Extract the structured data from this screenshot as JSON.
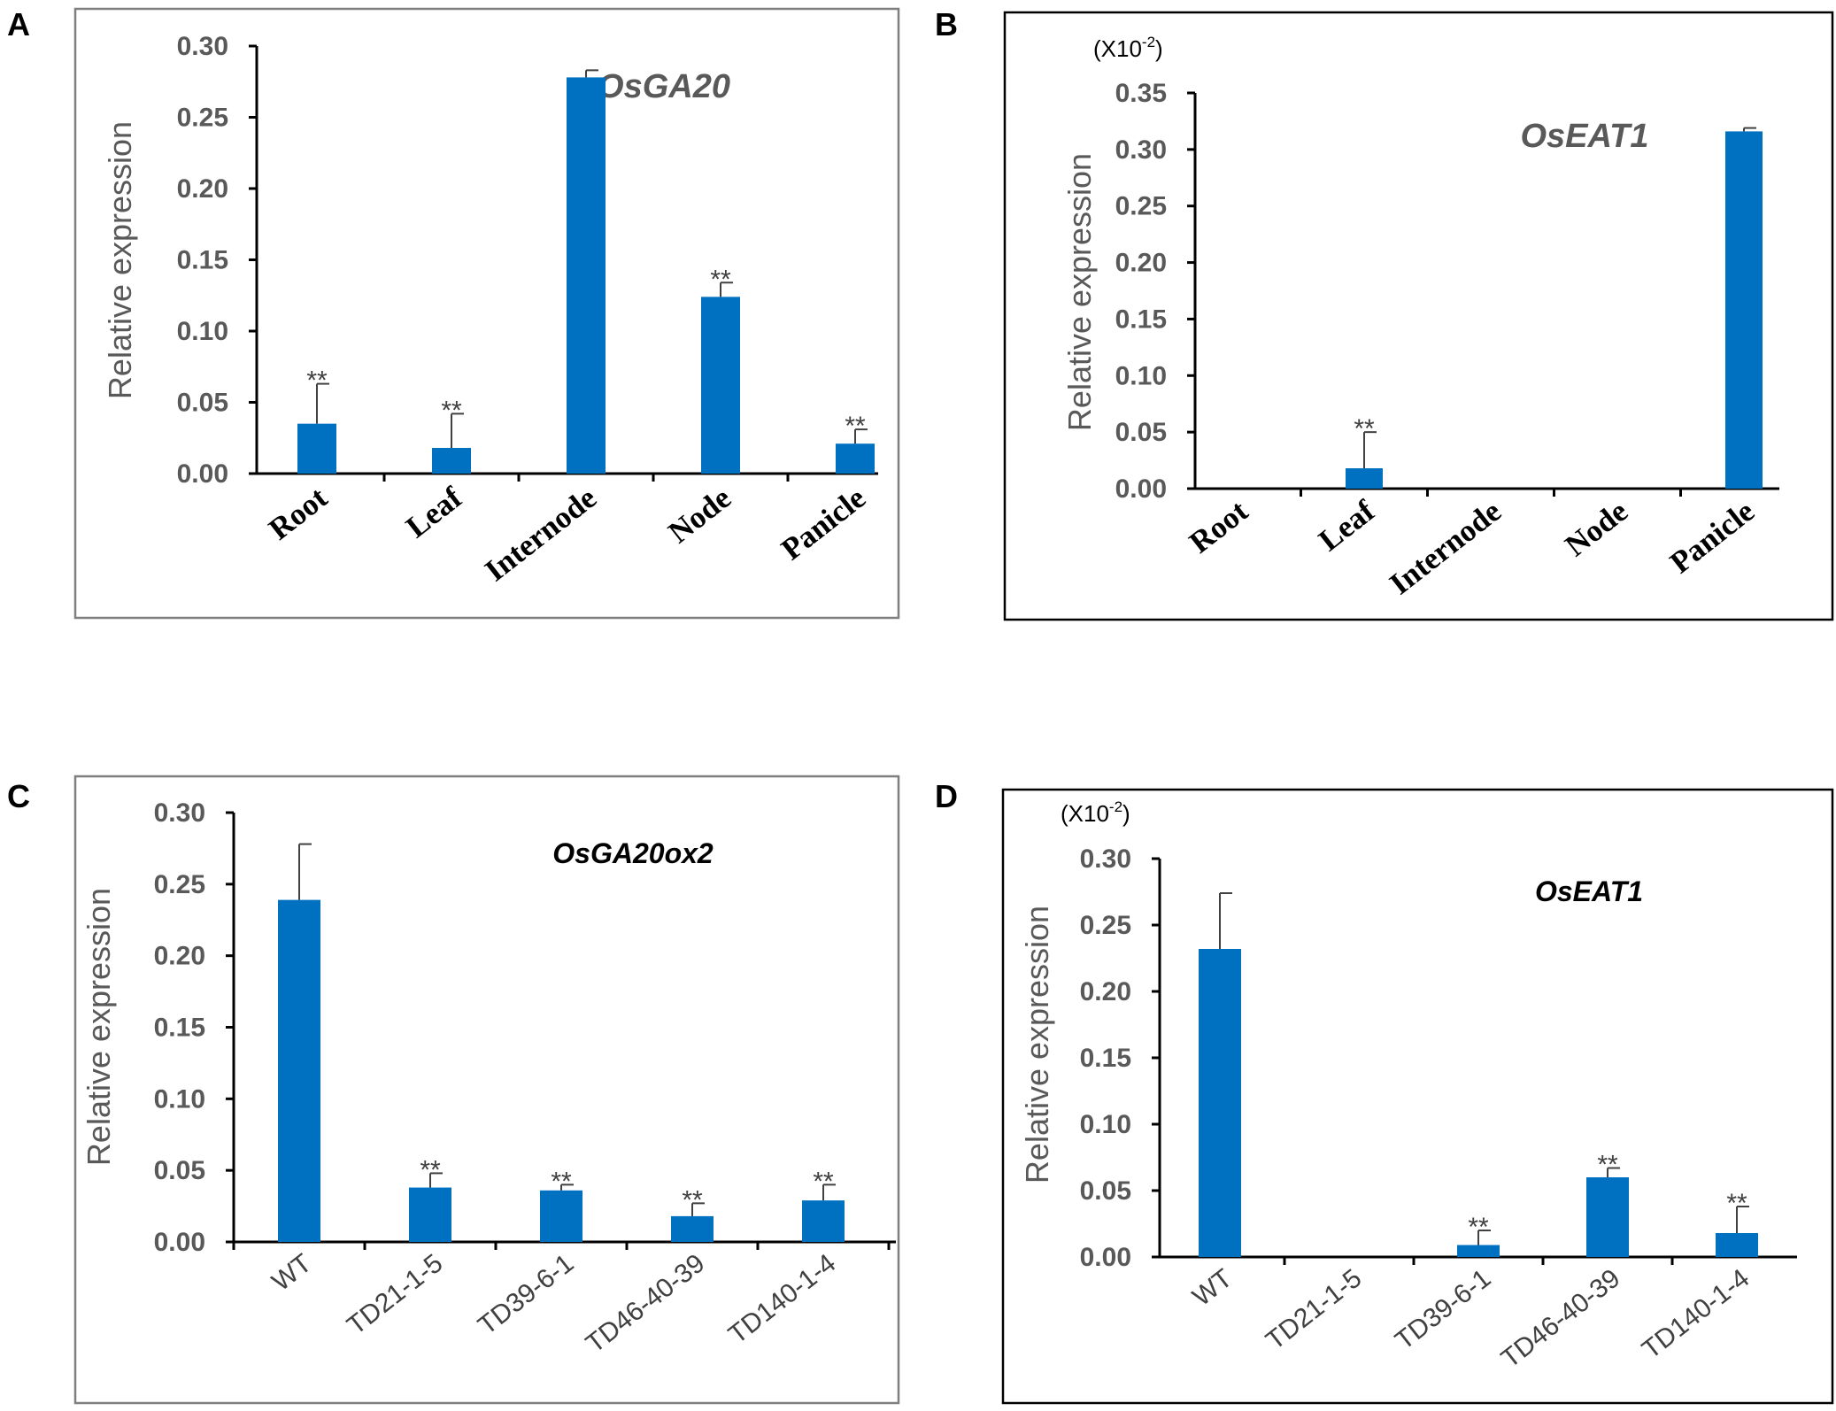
{
  "colors": {
    "bar": "#0070C0",
    "frame_gray": "#7f7f7f",
    "frame_black": "#000000"
  },
  "chart_data": [
    {
      "panel": "A",
      "type": "bar",
      "title": "OsGA20",
      "ylabel": "Relative expression",
      "ylim": [
        0,
        0.3
      ],
      "yticks": [
        "0.00",
        "0.05",
        "0.10",
        "0.15",
        "0.20",
        "0.25",
        "0.30"
      ],
      "categories": [
        "Root",
        "Leaf",
        "Internode",
        "Node",
        "Panicle"
      ],
      "values": [
        0.035,
        0.018,
        0.278,
        0.124,
        0.021
      ],
      "errors": [
        0.028,
        0.024,
        0.005,
        0.01,
        0.01
      ],
      "significance": [
        "**",
        "**",
        "",
        "**",
        "**"
      ]
    },
    {
      "panel": "B",
      "type": "bar",
      "title": "OsEAT1",
      "scale_note": "(X10",
      "scale_exp": "-2",
      "scale_close": ")",
      "ylabel": "Relative expression",
      "ylim": [
        0,
        0.35
      ],
      "yticks": [
        "0.00",
        "0.05",
        "0.10",
        "0.15",
        "0.20",
        "0.25",
        "0.30",
        "0.35"
      ],
      "categories": [
        "Root",
        "Leaf",
        "Internode",
        "Node",
        "Panicle"
      ],
      "values": [
        0,
        0.018,
        0,
        0,
        0.316
      ],
      "errors": [
        0,
        0.032,
        0,
        0,
        0.003
      ],
      "significance": [
        "",
        "**",
        "",
        "",
        ""
      ]
    },
    {
      "panel": "C",
      "type": "bar",
      "title": "OsGA20ox2",
      "ylabel": "Relative expression",
      "ylim": [
        0,
        0.3
      ],
      "yticks": [
        "0.00",
        "0.05",
        "0.10",
        "0.15",
        "0.20",
        "0.25",
        "0.30"
      ],
      "categories": [
        "WT",
        "TD21-1-5",
        "TD39-6-1",
        "TD46-40-39",
        "TD140-1-4"
      ],
      "values": [
        0.239,
        0.038,
        0.036,
        0.018,
        0.029
      ],
      "errors": [
        0.039,
        0.01,
        0.004,
        0.009,
        0.011
      ],
      "significance": [
        "",
        "**",
        "**",
        "**",
        "**"
      ]
    },
    {
      "panel": "D",
      "type": "bar",
      "title": "OsEAT1",
      "scale_note": "(X10",
      "scale_exp": "-2",
      "scale_close": ")",
      "ylabel": "Relative expression",
      "ylim": [
        0,
        0.3
      ],
      "yticks": [
        "0.00",
        "0.05",
        "0.10",
        "0.15",
        "0.20",
        "0.25",
        "0.30"
      ],
      "categories": [
        "WT",
        "TD21-1-5",
        "TD39-6-1",
        "TD46-40-39",
        "TD140-1-4"
      ],
      "values": [
        0.232,
        0,
        0.009,
        0.06,
        0.018
      ],
      "errors": [
        0.042,
        0,
        0.011,
        0.007,
        0.02
      ],
      "significance": [
        "",
        "",
        "**",
        "**",
        "**"
      ]
    }
  ]
}
